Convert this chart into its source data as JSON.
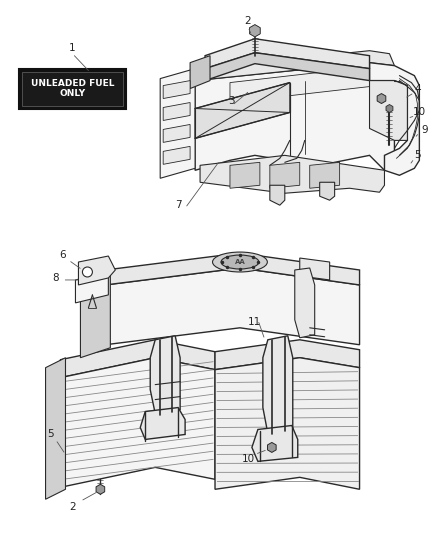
{
  "background_color": "#ffffff",
  "fig_width": 4.39,
  "fig_height": 5.33,
  "dpi": 100,
  "line_color": "#2a2a2a",
  "light_fill": "#f5f5f5",
  "mid_fill": "#e8e8e8",
  "dark_fill": "#d0d0d0",
  "sticker_bg": "#111111",
  "sticker_text": "UNLEADED FUEL\nONLY",
  "sticker_text_color": "#ffffff",
  "label_color": "#222222",
  "label_fontsize": 7.5
}
